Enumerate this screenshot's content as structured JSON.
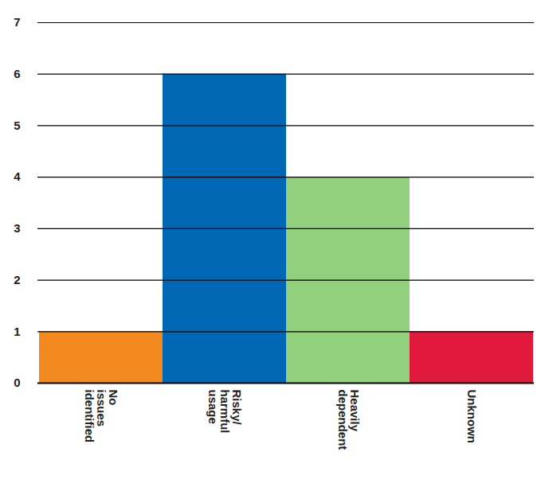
{
  "chart_data": {
    "type": "bar",
    "categories": [
      "No issues identified",
      "Risky/harmful usage",
      "Heavily dependent",
      "Unknown"
    ],
    "values": [
      1,
      6,
      4,
      1
    ],
    "colors": [
      "#f28a1f",
      "#0067b5",
      "#92d07e",
      "#e1193b"
    ],
    "ylim": [
      0,
      7
    ],
    "yticks": [
      0,
      1,
      2,
      3,
      4,
      5,
      6,
      7
    ],
    "grid": true
  }
}
